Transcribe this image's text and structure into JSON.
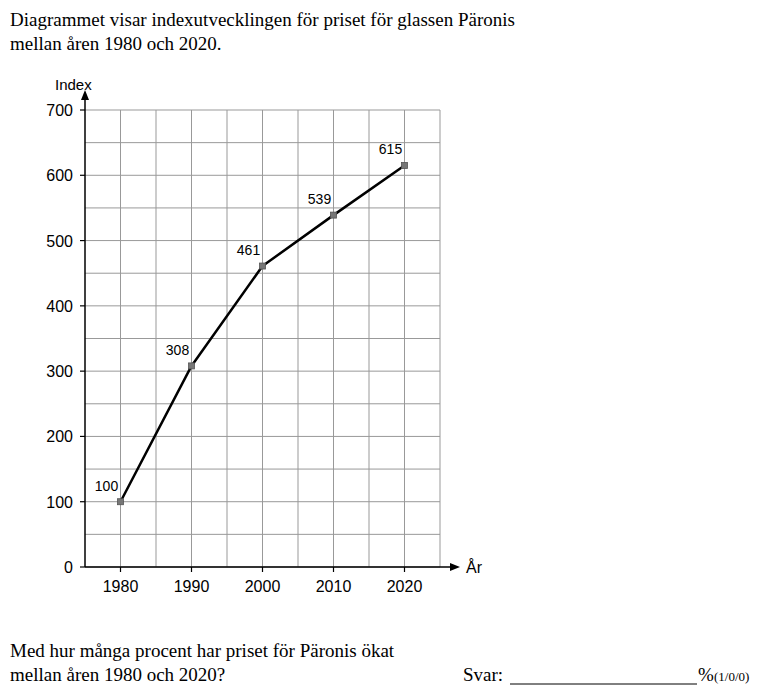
{
  "intro": [
    "Diagrammet visar indexutvecklingen för priset för glassen Päronis",
    "mellan åren 1980 och 2020."
  ],
  "chart_data": {
    "type": "line",
    "y_label": "Index",
    "x_label": "År",
    "x": [
      1980,
      1990,
      2000,
      2010,
      2020
    ],
    "values": [
      100,
      308,
      461,
      539,
      615
    ],
    "xlim": [
      1975,
      2025
    ],
    "xticks": [
      1980,
      1990,
      2000,
      2010,
      2020
    ],
    "ylim": [
      0,
      700
    ],
    "yticks": [
      0,
      100,
      200,
      300,
      400,
      500,
      600,
      700
    ],
    "grid": true,
    "data_labels": true,
    "marker": "square",
    "color": "#000000"
  },
  "question": [
    "Med hur många procent har priset för Päronis ökat",
    "mellan åren 1980 och 2020?"
  ],
  "answer_label": "Svar:",
  "answer_unit": "%",
  "points": "(1/0/0)"
}
